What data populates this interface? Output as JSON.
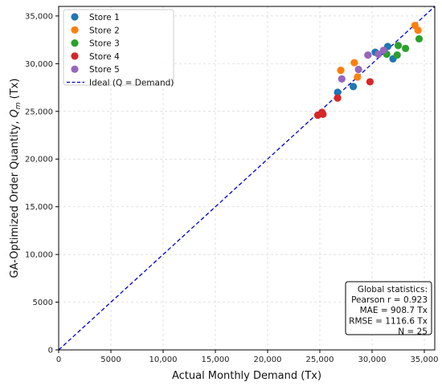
{
  "chart_data": {
    "type": "scatter",
    "xlabel": "Actual Monthly Demand (Tx)",
    "ylabel_main": "GA-Optimized Order Quantity, ",
    "ylabel_q": "Q",
    "ylabel_sub": "m",
    "ylabel_unit": " (Tx)",
    "xlim": [
      0,
      36000
    ],
    "ylim": [
      0,
      36000
    ],
    "x_ticks": [
      0,
      5000,
      10000,
      15000,
      20000,
      25000,
      30000,
      35000
    ],
    "x_tick_labels": [
      "0",
      "5000",
      "10,000",
      "15,000",
      "20,000",
      "25,000",
      "30,000",
      "35,000"
    ],
    "y_ticks": [
      0,
      5000,
      10000,
      15000,
      20000,
      25000,
      30000,
      35000
    ],
    "y_tick_labels": [
      "0",
      "5000",
      "10,000",
      "15,000",
      "20,000",
      "25,000",
      "30,000",
      "35,000"
    ],
    "grid": true,
    "legend_position": "top-left",
    "series": [
      {
        "name": "Store 1",
        "color": "#1f77b4",
        "points": [
          [
            26700,
            27000
          ],
          [
            28200,
            27600
          ],
          [
            30300,
            31200
          ],
          [
            31500,
            31800
          ],
          [
            32000,
            30500
          ]
        ]
      },
      {
        "name": "Store 2",
        "color": "#ff7f0e",
        "points": [
          [
            27000,
            29300
          ],
          [
            28300,
            30100
          ],
          [
            28600,
            28600
          ],
          [
            34100,
            34000
          ],
          [
            34400,
            33500
          ]
        ]
      },
      {
        "name": "Store 3",
        "color": "#2ca02c",
        "points": [
          [
            31400,
            31000
          ],
          [
            32400,
            30900
          ],
          [
            32500,
            31900
          ],
          [
            33200,
            31600
          ],
          [
            34500,
            32600
          ]
        ]
      },
      {
        "name": "Store 4",
        "color": "#d62728",
        "points": [
          [
            24800,
            24600
          ],
          [
            25200,
            24900
          ],
          [
            25300,
            24700
          ],
          [
            26700,
            26400
          ],
          [
            29800,
            28100
          ]
        ]
      },
      {
        "name": "Store 5",
        "color": "#9467bd",
        "points": [
          [
            27100,
            28400
          ],
          [
            28700,
            29400
          ],
          [
            29600,
            30900
          ],
          [
            30600,
            31000
          ],
          [
            31100,
            31400
          ]
        ]
      }
    ],
    "ideal_line": {
      "name": "Ideal (Q = Demand)",
      "color": "#0000cc"
    },
    "stats": {
      "title": "Global statistics:",
      "lines": [
        "Pearson r = 0.923",
        "MAE = 908.7 Tx",
        "RMSE = 1116.6 Tx",
        "N = 25"
      ]
    }
  }
}
